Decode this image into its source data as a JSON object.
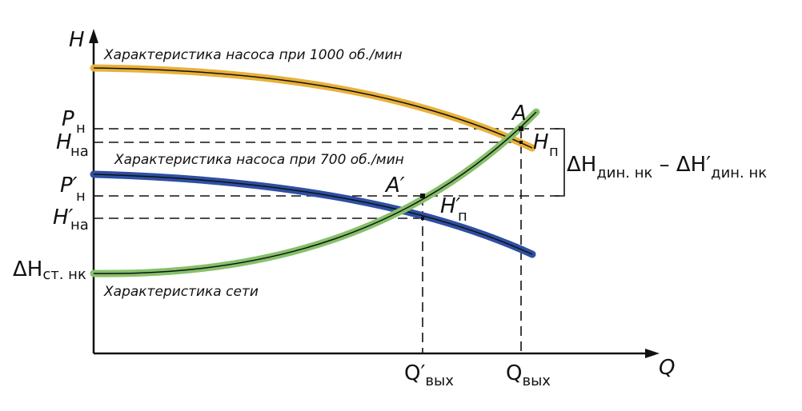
{
  "axes": {
    "y_label": "H",
    "x_label": "Q"
  },
  "curves": [
    {
      "name": "pump-1000",
      "caption": "Характеристика насоса при 1000 об./мин",
      "color": "#e8b13a"
    },
    {
      "name": "pump-700",
      "caption": "Характеристика насоса при 700 об./мин",
      "color": "#2e4fa3"
    },
    {
      "name": "network",
      "caption": "Характеристика сети",
      "color": "#86c06a"
    }
  ],
  "y_labels": {
    "p_n": {
      "main": "P",
      "sub": "н"
    },
    "h_na": {
      "main": "H",
      "sub": "на"
    },
    "p_n_prime": {
      "main": "P′",
      "sub": "н"
    },
    "h_na_prime": {
      "main": "H′",
      "sub": "на"
    },
    "dh_st": {
      "main": "ΔH",
      "sub": "ст. нк"
    }
  },
  "points": {
    "a": "A",
    "a_prime": "A′",
    "h_p": {
      "main": "H",
      "sub": "п"
    },
    "h_p_prime": {
      "main": "H′",
      "sub": "п"
    }
  },
  "x_labels": {
    "q_out_prime": {
      "main": "Q′",
      "sub": "вых"
    },
    "q_out": {
      "main": "Q",
      "sub": "вых"
    }
  },
  "delta": {
    "main1": "ΔH",
    "sub1": "дин. нк",
    "minus": " – ",
    "main2": "ΔH′",
    "sub2": "дин. нк"
  }
}
